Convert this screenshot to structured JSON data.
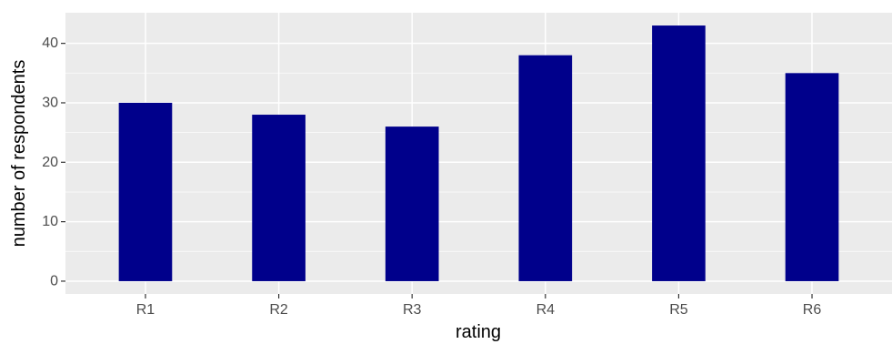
{
  "chart_data": {
    "type": "bar",
    "categories": [
      "R1",
      "R2",
      "R3",
      "R4",
      "R5",
      "R6"
    ],
    "values": [
      30,
      28,
      26,
      38,
      43,
      35
    ],
    "title": "",
    "xlabel": "rating",
    "ylabel": "number of respondents",
    "ylim": [
      -2.15,
      45.15
    ],
    "yticks": [
      0,
      10,
      20,
      30,
      40
    ],
    "grid": true,
    "legend": "none",
    "colors": {
      "bar": "#00008b",
      "panel": "#ebebeb",
      "grid": "#ffffff",
      "tick_text": "#4d4d4d",
      "axis_title": "#000000"
    }
  }
}
